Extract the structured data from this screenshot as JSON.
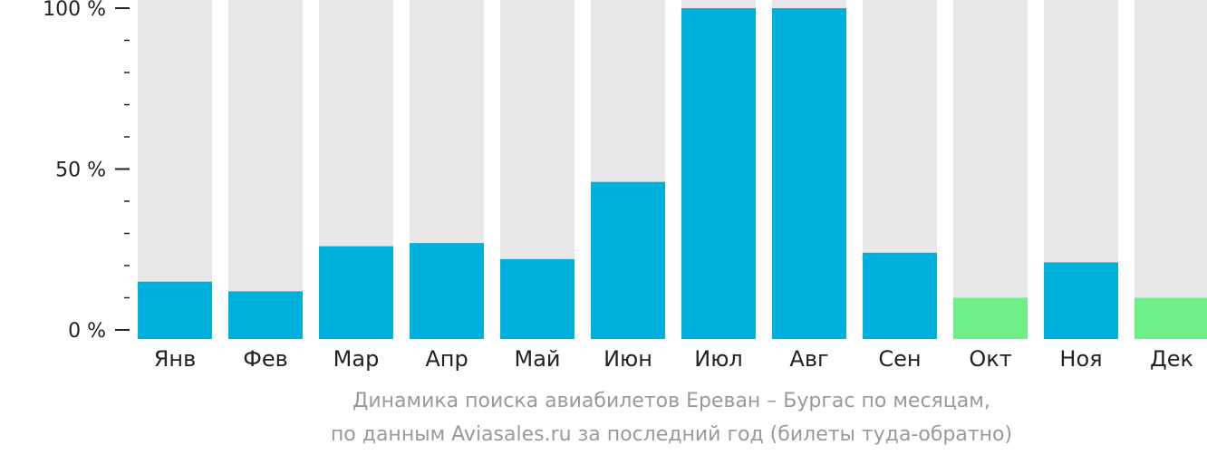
{
  "colors": {
    "bar_main": "#00b0dc",
    "bar_low": "#6fef88",
    "bar_track": "#e8e8e8",
    "axis": "#222222",
    "caption": "#9a9a9a"
  },
  "caption": {
    "line1": "Динамика поиска авиабилетов Ереван – Бургас по месяцам,",
    "line2": "по данным Aviasales.ru за последний год (билеты туда-обратно)"
  },
  "chart_data": {
    "type": "bar",
    "categories": [
      "Янв",
      "Фев",
      "Мар",
      "Апр",
      "Май",
      "Июн",
      "Июл",
      "Авг",
      "Сен",
      "Окт",
      "Ноя",
      "Дек"
    ],
    "values": [
      15,
      12,
      26,
      27,
      22,
      46,
      100,
      100,
      24,
      10,
      21,
      10
    ],
    "highlight_low": [
      false,
      false,
      false,
      false,
      false,
      false,
      false,
      false,
      false,
      true,
      false,
      true
    ],
    "yticks": [
      {
        "value": 0,
        "label": "0 %"
      },
      {
        "value": 50,
        "label": "50 %"
      },
      {
        "value": 100,
        "label": "100 %"
      }
    ],
    "ylim": [
      0,
      100
    ],
    "minor_tick_step": 10,
    "grid": false,
    "title": "",
    "xlabel": "",
    "ylabel": ""
  }
}
